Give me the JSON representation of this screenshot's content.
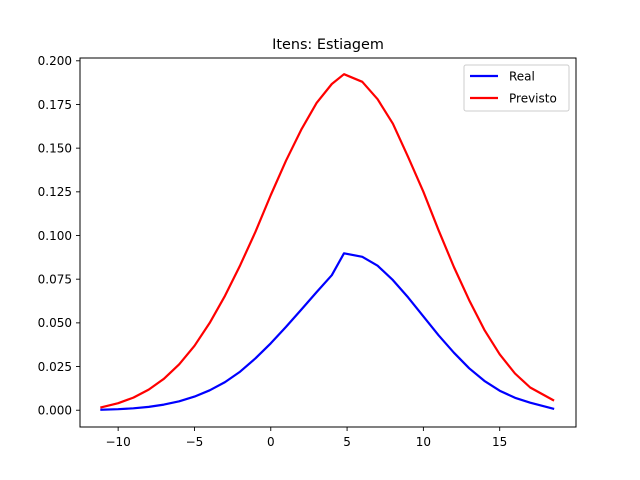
{
  "chart_data": {
    "type": "line",
    "title": "Itens: Estiagem",
    "xlabel": "",
    "ylabel": "",
    "xlim": [
      -12.5,
      20
    ],
    "ylim": [
      -0.0096,
      0.2016
    ],
    "x_ticks": [
      -10,
      -5,
      0,
      5,
      10,
      15
    ],
    "x_tick_labels": [
      "−10",
      "−5",
      "0",
      "5",
      "10",
      "15"
    ],
    "y_ticks": [
      0.0,
      0.025,
      0.05,
      0.075,
      0.1,
      0.125,
      0.15,
      0.175,
      0.2
    ],
    "y_tick_labels": [
      "0.000",
      "0.025",
      "0.050",
      "0.075",
      "0.100",
      "0.125",
      "0.150",
      "0.175",
      "0.200"
    ],
    "grid": false,
    "legend_position": "upper right",
    "series": [
      {
        "name": "Real",
        "color": "#0000ff",
        "x": [
          -11.1,
          -10,
          -9,
          -8,
          -7,
          -6,
          -5,
          -4,
          -3,
          -2,
          -1,
          0,
          1,
          2,
          3,
          4,
          4.8,
          6,
          7,
          8,
          9,
          10,
          11,
          12,
          13,
          14,
          15,
          16,
          17,
          18.5
        ],
        "y": [
          0.0003,
          0.0006,
          0.0011,
          0.0019,
          0.0032,
          0.0051,
          0.0078,
          0.0114,
          0.0161,
          0.0221,
          0.0297,
          0.0383,
          0.0477,
          0.0576,
          0.0676,
          0.0773,
          0.0898,
          0.0878,
          0.0827,
          0.0745,
          0.0646,
          0.0537,
          0.0429,
          0.0329,
          0.024,
          0.0168,
          0.0112,
          0.0071,
          0.0043,
          0.0009
        ]
      },
      {
        "name": "Previsto",
        "color": "#ff0000",
        "x": [
          -11.1,
          -10,
          -9,
          -8,
          -7,
          -6,
          -5,
          -4,
          -3,
          -2,
          -1,
          0,
          1,
          2,
          3,
          4,
          4.8,
          6,
          7,
          8,
          9,
          10,
          11,
          12,
          13,
          14,
          15,
          16,
          17,
          18.5
        ],
        "y": [
          0.0017,
          0.004,
          0.0072,
          0.0118,
          0.018,
          0.0263,
          0.0369,
          0.05,
          0.0655,
          0.083,
          0.1022,
          0.1232,
          0.1428,
          0.1606,
          0.1759,
          0.1867,
          0.1923,
          0.188,
          0.178,
          0.164,
          0.145,
          0.125,
          0.103,
          0.082,
          0.063,
          0.046,
          0.032,
          0.021,
          0.013,
          0.0058
        ]
      }
    ]
  }
}
